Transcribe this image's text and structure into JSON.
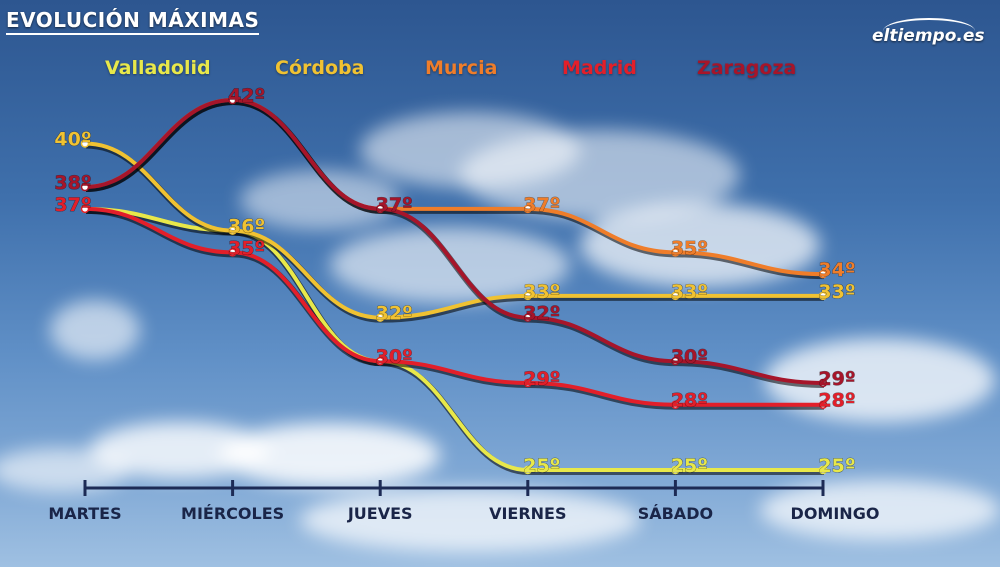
{
  "title": "EVOLUCIÓN MÁXIMAS",
  "logo_text": "eltiempo.es",
  "chart_data": {
    "type": "line",
    "title": "EVOLUCIÓN MÁXIMAS",
    "categories": [
      "MARTES",
      "MIÉRCOLES",
      "JUEVES",
      "VIERNES",
      "SÁBADO",
      "DOMINGO"
    ],
    "series": [
      {
        "name": "Valladolid",
        "color": "#e8e84a",
        "values": [
          37,
          36,
          30,
          25,
          25,
          25
        ],
        "labels": [
          null,
          null,
          null,
          "25º",
          "25º",
          "25º"
        ]
      },
      {
        "name": "Córdoba",
        "color": "#f0c232",
        "values": [
          40,
          36,
          32,
          33,
          33,
          33
        ],
        "labels": [
          "40º",
          "36º",
          "32º",
          "33º",
          "33º",
          "33º"
        ]
      },
      {
        "name": "Murcia",
        "color": "#ef7d2a",
        "values": [
          38,
          42,
          37,
          37,
          35,
          34
        ],
        "labels": [
          null,
          null,
          null,
          "37º",
          "35º",
          "34º"
        ]
      },
      {
        "name": "Madrid",
        "color": "#e21f2a",
        "values": [
          37,
          35,
          30,
          29,
          28,
          28
        ],
        "labels": [
          "37º",
          "35º",
          "30º",
          "29º",
          "28º",
          "28º"
        ]
      },
      {
        "name": "Zaragoza",
        "color": "#a6152a",
        "values": [
          38,
          42,
          37,
          32,
          30,
          29
        ],
        "labels": [
          "38º",
          "42º",
          "37º",
          "32º",
          "30º",
          "29º"
        ]
      }
    ],
    "ylim": [
      23,
      44
    ],
    "grid": false,
    "legend": "top"
  }
}
